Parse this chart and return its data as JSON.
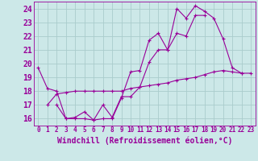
{
  "background_color": "#cce8e8",
  "grid_color": "#aacccc",
  "line_color": "#990099",
  "marker_size": 3,
  "xlabel": "Windchill (Refroidissement éolien,°C)",
  "xlabel_fontsize": 7,
  "ytick_fontsize": 7,
  "xtick_fontsize": 5.5,
  "ylim": [
    15.5,
    24.5
  ],
  "xlim": [
    -0.5,
    23.5
  ],
  "series": [
    {
      "x": [
        0,
        1,
        2,
        3,
        4,
        5,
        6,
        7,
        8,
        9,
        10,
        11,
        12,
        13,
        14,
        15,
        16,
        17,
        18,
        19,
        20,
        21,
        22
      ],
      "y": [
        19.7,
        18.2,
        18.0,
        16.0,
        16.0,
        16.0,
        15.9,
        16.0,
        16.0,
        17.5,
        19.4,
        19.5,
        21.7,
        22.2,
        21.0,
        24.0,
        23.3,
        24.2,
        23.8,
        23.3,
        21.8,
        19.7,
        19.3
      ]
    },
    {
      "x": [
        2,
        3,
        4,
        5,
        6,
        7,
        8,
        9,
        10,
        11,
        12,
        13,
        14,
        15,
        16,
        17,
        18
      ],
      "y": [
        17.0,
        16.0,
        16.1,
        16.5,
        15.9,
        17.0,
        16.1,
        17.6,
        17.6,
        18.3,
        20.1,
        21.0,
        21.0,
        22.2,
        22.0,
        23.5,
        23.5
      ]
    },
    {
      "x": [
        1,
        2,
        3,
        4,
        5,
        6,
        7,
        8,
        9,
        10,
        11,
        12,
        13,
        14,
        15,
        16,
        17,
        18,
        19,
        20,
        21,
        22,
        23
      ],
      "y": [
        17.0,
        17.8,
        17.9,
        18.0,
        18.0,
        18.0,
        18.0,
        18.0,
        18.0,
        18.2,
        18.3,
        18.4,
        18.5,
        18.6,
        18.8,
        18.9,
        19.0,
        19.2,
        19.4,
        19.5,
        19.4,
        19.3,
        19.3
      ]
    }
  ]
}
